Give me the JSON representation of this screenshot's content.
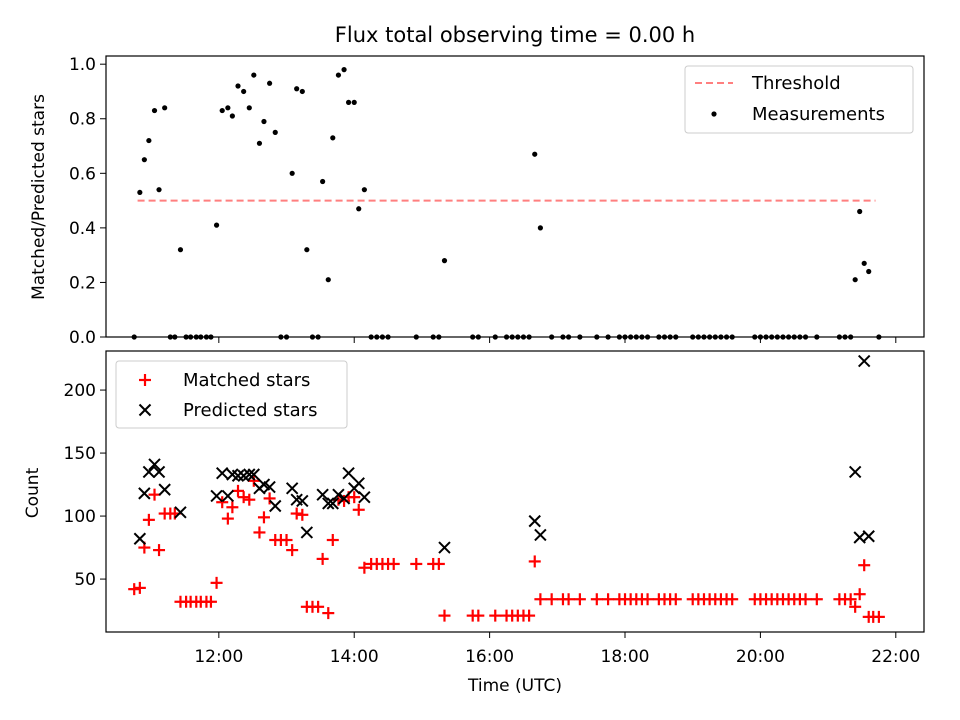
{
  "chart_data": [
    {
      "type": "scatter",
      "title": "Flux total observing time = 0.00 h",
      "xlabel": "",
      "ylabel": "Matched/Predicted stars",
      "x_unit": "time of day (UTC)",
      "xlim": [
        "10:20",
        "22:25"
      ],
      "ylim": [
        0,
        1.03
      ],
      "yticks": [
        "0.0",
        "0.2",
        "0.4",
        "0.6",
        "0.8",
        "1.0"
      ],
      "legend_position": "top-right",
      "grid": false,
      "threshold": {
        "name": "Threshold",
        "value": 0.5,
        "x_start": "10:48",
        "x_end": "21:42",
        "color": "#ff7f7f",
        "style": "dashed"
      },
      "series": [
        {
          "name": "Measurements",
          "color": "#000000",
          "marker": "dot",
          "points": [
            [
              "10:45",
              0.0
            ],
            [
              "10:50",
              0.53
            ],
            [
              "10:54",
              0.65
            ],
            [
              "10:58",
              0.72
            ],
            [
              "11:03",
              0.83
            ],
            [
              "11:07",
              0.54
            ],
            [
              "11:12",
              0.84
            ],
            [
              "11:17",
              0.0
            ],
            [
              "11:21",
              0.0
            ],
            [
              "11:26",
              0.32
            ],
            [
              "11:31",
              0.0
            ],
            [
              "11:35",
              0.0
            ],
            [
              "11:40",
              0.0
            ],
            [
              "11:44",
              0.0
            ],
            [
              "11:49",
              0.0
            ],
            [
              "11:53",
              0.0
            ],
            [
              "11:58",
              0.41
            ],
            [
              "12:03",
              0.83
            ],
            [
              "12:08",
              0.84
            ],
            [
              "12:12",
              0.81
            ],
            [
              "12:17",
              0.92
            ],
            [
              "12:22",
              0.9
            ],
            [
              "12:27",
              0.84
            ],
            [
              "12:31",
              0.96
            ],
            [
              "12:36",
              0.71
            ],
            [
              "12:40",
              0.79
            ],
            [
              "12:45",
              0.93
            ],
            [
              "12:50",
              0.75
            ],
            [
              "12:55",
              0.0
            ],
            [
              "13:00",
              0.0
            ],
            [
              "13:05",
              0.6
            ],
            [
              "13:09",
              0.91
            ],
            [
              "13:14",
              0.9
            ],
            [
              "13:18",
              0.32
            ],
            [
              "13:23",
              0.0
            ],
            [
              "13:28",
              0.0
            ],
            [
              "13:32",
              0.57
            ],
            [
              "13:37",
              0.21
            ],
            [
              "13:41",
              0.73
            ],
            [
              "13:46",
              0.96
            ],
            [
              "13:51",
              0.98
            ],
            [
              "13:55",
              0.86
            ],
            [
              "14:00",
              0.86
            ],
            [
              "14:04",
              0.47
            ],
            [
              "14:09",
              0.54
            ],
            [
              "14:15",
              0.0
            ],
            [
              "14:20",
              0.0
            ],
            [
              "14:25",
              0.0
            ],
            [
              "14:30",
              0.0
            ],
            [
              "14:55",
              0.0
            ],
            [
              "15:10",
              0.0
            ],
            [
              "15:15",
              0.0
            ],
            [
              "15:20",
              0.28
            ],
            [
              "15:45",
              0.0
            ],
            [
              "15:50",
              0.0
            ],
            [
              "16:05",
              0.0
            ],
            [
              "16:15",
              0.0
            ],
            [
              "16:20",
              0.0
            ],
            [
              "16:25",
              0.0
            ],
            [
              "16:30",
              0.0
            ],
            [
              "16:35",
              0.0
            ],
            [
              "16:40",
              0.67
            ],
            [
              "16:45",
              0.4
            ],
            [
              "16:55",
              0.0
            ],
            [
              "17:05",
              0.0
            ],
            [
              "17:10",
              0.0
            ],
            [
              "17:20",
              0.0
            ],
            [
              "17:35",
              0.0
            ],
            [
              "17:45",
              0.0
            ],
            [
              "17:55",
              0.0
            ],
            [
              "18:00",
              0.0
            ],
            [
              "18:05",
              0.0
            ],
            [
              "18:10",
              0.0
            ],
            [
              "18:15",
              0.0
            ],
            [
              "18:20",
              0.0
            ],
            [
              "18:30",
              0.0
            ],
            [
              "18:35",
              0.0
            ],
            [
              "18:40",
              0.0
            ],
            [
              "18:45",
              0.0
            ],
            [
              "19:00",
              0.0
            ],
            [
              "19:05",
              0.0
            ],
            [
              "19:10",
              0.0
            ],
            [
              "19:15",
              0.0
            ],
            [
              "19:20",
              0.0
            ],
            [
              "19:25",
              0.0
            ],
            [
              "19:30",
              0.0
            ],
            [
              "19:35",
              0.0
            ],
            [
              "19:55",
              0.0
            ],
            [
              "20:00",
              0.0
            ],
            [
              "20:05",
              0.0
            ],
            [
              "20:10",
              0.0
            ],
            [
              "20:15",
              0.0
            ],
            [
              "20:20",
              0.0
            ],
            [
              "20:25",
              0.0
            ],
            [
              "20:30",
              0.0
            ],
            [
              "20:35",
              0.0
            ],
            [
              "20:40",
              0.0
            ],
            [
              "20:50",
              0.0
            ],
            [
              "21:10",
              0.0
            ],
            [
              "21:15",
              0.0
            ],
            [
              "21:20",
              0.0
            ],
            [
              "21:24",
              0.21
            ],
            [
              "21:28",
              0.46
            ],
            [
              "21:32",
              0.27
            ],
            [
              "21:36",
              0.24
            ],
            [
              "21:45",
              0.0
            ]
          ]
        }
      ]
    },
    {
      "type": "scatter",
      "title": "",
      "xlabel": "Time (UTC)",
      "ylabel": "Count",
      "x_unit": "time of day (UTC)",
      "xlim": [
        "10:20",
        "22:25"
      ],
      "ylim": [
        8,
        231
      ],
      "xticks": [
        "12:00",
        "14:00",
        "16:00",
        "18:00",
        "20:00",
        "22:00"
      ],
      "yticks": [
        "50",
        "100",
        "150",
        "200"
      ],
      "legend_position": "top-left",
      "grid": false,
      "series": [
        {
          "name": "Matched stars",
          "color": "#ff0000",
          "marker": "plus",
          "points": [
            [
              "10:45",
              42
            ],
            [
              "10:50",
              43
            ],
            [
              "10:54",
              75
            ],
            [
              "10:58",
              97
            ],
            [
              "11:03",
              117
            ],
            [
              "11:07",
              73
            ],
            [
              "11:12",
              102
            ],
            [
              "11:17",
              102
            ],
            [
              "11:21",
              102
            ],
            [
              "11:26",
              32
            ],
            [
              "11:31",
              32
            ],
            [
              "11:35",
              32
            ],
            [
              "11:40",
              32
            ],
            [
              "11:44",
              32
            ],
            [
              "11:49",
              32
            ],
            [
              "11:53",
              32
            ],
            [
              "11:58",
              47
            ],
            [
              "12:03",
              111
            ],
            [
              "12:08",
              98
            ],
            [
              "12:12",
              107
            ],
            [
              "12:17",
              120
            ],
            [
              "12:22",
              115
            ],
            [
              "12:27",
              113
            ],
            [
              "12:31",
              128
            ],
            [
              "12:36",
              87
            ],
            [
              "12:40",
              99
            ],
            [
              "12:45",
              114
            ],
            [
              "12:50",
              81
            ],
            [
              "12:55",
              81
            ],
            [
              "13:00",
              81
            ],
            [
              "13:05",
              73
            ],
            [
              "13:09",
              102
            ],
            [
              "13:14",
              101
            ],
            [
              "13:18",
              28
            ],
            [
              "13:23",
              28
            ],
            [
              "13:28",
              28
            ],
            [
              "13:32",
              66
            ],
            [
              "13:37",
              23
            ],
            [
              "13:41",
              81
            ],
            [
              "13:46",
              113
            ],
            [
              "13:51",
              112
            ],
            [
              "13:55",
              115
            ],
            [
              "14:00",
              115
            ],
            [
              "14:04",
              105
            ],
            [
              "14:09",
              59
            ],
            [
              "14:15",
              62
            ],
            [
              "14:20",
              62
            ],
            [
              "14:25",
              62
            ],
            [
              "14:30",
              62
            ],
            [
              "14:35",
              62
            ],
            [
              "14:55",
              62
            ],
            [
              "15:10",
              62
            ],
            [
              "15:15",
              62
            ],
            [
              "15:20",
              21
            ],
            [
              "15:45",
              21
            ],
            [
              "15:50",
              21
            ],
            [
              "16:05",
              21
            ],
            [
              "16:15",
              21
            ],
            [
              "16:20",
              21
            ],
            [
              "16:25",
              21
            ],
            [
              "16:30",
              21
            ],
            [
              "16:35",
              21
            ],
            [
              "16:40",
              64
            ],
            [
              "16:45",
              34
            ],
            [
              "16:55",
              34
            ],
            [
              "17:05",
              34
            ],
            [
              "17:10",
              34
            ],
            [
              "17:20",
              34
            ],
            [
              "17:35",
              34
            ],
            [
              "17:45",
              34
            ],
            [
              "17:55",
              34
            ],
            [
              "18:00",
              34
            ],
            [
              "18:05",
              34
            ],
            [
              "18:10",
              34
            ],
            [
              "18:15",
              34
            ],
            [
              "18:20",
              34
            ],
            [
              "18:30",
              34
            ],
            [
              "18:35",
              34
            ],
            [
              "18:40",
              34
            ],
            [
              "18:45",
              34
            ],
            [
              "19:00",
              34
            ],
            [
              "19:05",
              34
            ],
            [
              "19:10",
              34
            ],
            [
              "19:15",
              34
            ],
            [
              "19:20",
              34
            ],
            [
              "19:25",
              34
            ],
            [
              "19:30",
              34
            ],
            [
              "19:35",
              34
            ],
            [
              "19:55",
              34
            ],
            [
              "20:00",
              34
            ],
            [
              "20:05",
              34
            ],
            [
              "20:10",
              34
            ],
            [
              "20:15",
              34
            ],
            [
              "20:20",
              34
            ],
            [
              "20:25",
              34
            ],
            [
              "20:30",
              34
            ],
            [
              "20:35",
              34
            ],
            [
              "20:40",
              34
            ],
            [
              "20:50",
              34
            ],
            [
              "21:10",
              34
            ],
            [
              "21:15",
              34
            ],
            [
              "21:20",
              34
            ],
            [
              "21:24",
              28
            ],
            [
              "21:28",
              38
            ],
            [
              "21:32",
              61
            ],
            [
              "21:36",
              20
            ],
            [
              "21:40",
              20
            ],
            [
              "21:45",
              20
            ]
          ]
        },
        {
          "name": "Predicted stars",
          "color": "#000000",
          "marker": "x",
          "points": [
            [
              "10:50",
              82
            ],
            [
              "10:54",
              118
            ],
            [
              "10:58",
              135
            ],
            [
              "11:03",
              141
            ],
            [
              "11:07",
              135
            ],
            [
              "11:12",
              121
            ],
            [
              "11:26",
              103
            ],
            [
              "11:58",
              116
            ],
            [
              "12:03",
              134
            ],
            [
              "12:08",
              116
            ],
            [
              "12:12",
              133
            ],
            [
              "12:17",
              132
            ],
            [
              "12:22",
              132
            ],
            [
              "12:27",
              133
            ],
            [
              "12:31",
              133
            ],
            [
              "12:36",
              122
            ],
            [
              "12:40",
              125
            ],
            [
              "12:45",
              123
            ],
            [
              "12:50",
              108
            ],
            [
              "13:05",
              122
            ],
            [
              "13:09",
              113
            ],
            [
              "13:14",
              112
            ],
            [
              "13:18",
              87
            ],
            [
              "13:32",
              117
            ],
            [
              "13:37",
              110
            ],
            [
              "13:41",
              110
            ],
            [
              "13:46",
              117
            ],
            [
              "13:51",
              114
            ],
            [
              "13:55",
              134
            ],
            [
              "14:00",
              122
            ],
            [
              "14:04",
              126
            ],
            [
              "14:09",
              115
            ],
            [
              "15:20",
              75
            ],
            [
              "16:40",
              96
            ],
            [
              "16:45",
              85
            ],
            [
              "21:24",
              135
            ],
            [
              "21:28",
              83
            ],
            [
              "21:32",
              223
            ],
            [
              "21:36",
              84
            ]
          ]
        }
      ]
    }
  ]
}
